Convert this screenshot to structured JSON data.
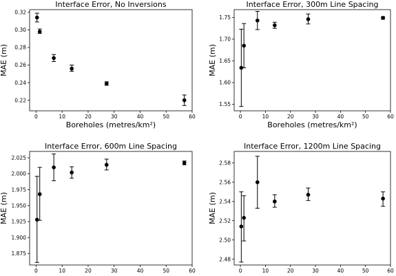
{
  "chart_data": [
    {
      "type": "scatter",
      "title": "Interface Error, No Inversions",
      "xlabel": "Boreholes (metres/km²)",
      "ylabel": "MAE (m)",
      "xlim": [
        -2.5,
        60
      ],
      "ylim": [
        0.208,
        0.323
      ],
      "xticks": [
        0,
        10,
        20,
        30,
        40,
        50,
        60
      ],
      "yticks": [
        0.22,
        0.24,
        0.26,
        0.28,
        0.3,
        0.32
      ],
      "ytick_labels": [
        "0.22",
        "0.24",
        "0.26",
        "0.28",
        "0.30",
        "0.32"
      ],
      "points": [
        {
          "x": 0.35,
          "y": 0.314,
          "lo": 0.309,
          "hi": 0.319
        },
        {
          "x": 1.4,
          "y": 0.298,
          "lo": 0.296,
          "hi": 0.301
        },
        {
          "x": 6.8,
          "y": 0.268,
          "lo": 0.264,
          "hi": 0.272
        },
        {
          "x": 13.7,
          "y": 0.256,
          "lo": 0.253,
          "hi": 0.26
        },
        {
          "x": 27.1,
          "y": 0.239,
          "lo": 0.237,
          "hi": 0.241
        },
        {
          "x": 57.0,
          "y": 0.22,
          "lo": 0.214,
          "hi": 0.226
        }
      ]
    },
    {
      "type": "scatter",
      "title": "Interface Error, 300m Line Spacing",
      "xlabel": "Boreholes (metres/km²)",
      "ylabel": "MAE (m)",
      "xlim": [
        -2.5,
        60
      ],
      "ylim": [
        1.535,
        1.768
      ],
      "xticks": [
        0,
        10,
        20,
        30,
        40,
        50,
        60
      ],
      "yticks": [
        1.55,
        1.6,
        1.65,
        1.7,
        1.75
      ],
      "ytick_labels": [
        "1.55",
        "1.60",
        "1.65",
        "1.70",
        "1.75"
      ],
      "points": [
        {
          "x": 0.35,
          "y": 1.634,
          "lo": 1.545,
          "hi": 1.723
        },
        {
          "x": 1.4,
          "y": 1.685,
          "lo": 1.634,
          "hi": 1.736
        },
        {
          "x": 6.8,
          "y": 1.743,
          "lo": 1.722,
          "hi": 1.764
        },
        {
          "x": 13.7,
          "y": 1.732,
          "lo": 1.725,
          "hi": 1.739
        },
        {
          "x": 27.1,
          "y": 1.746,
          "lo": 1.735,
          "hi": 1.758
        },
        {
          "x": 57.0,
          "y": 1.749,
          "lo": 1.746,
          "hi": 1.752
        }
      ]
    },
    {
      "type": "scatter",
      "title": "Interface Error, 600m Line Spacing",
      "xlabel": "Boreholes (metres/km²)",
      "ylabel": "MAE (m)",
      "xlim": [
        -2.5,
        60
      ],
      "ylim": [
        1.857,
        2.035
      ],
      "xticks": [
        0,
        10,
        20,
        30,
        40,
        50,
        60
      ],
      "yticks": [
        1.875,
        1.9,
        1.925,
        1.95,
        1.975,
        2.0,
        2.025
      ],
      "ytick_labels": [
        "1.875",
        "1.900",
        "1.925",
        "1.950",
        "1.975",
        "2.000",
        "2.025"
      ],
      "points": [
        {
          "x": 0.35,
          "y": 1.928,
          "lo": 1.861,
          "hi": 1.996
        },
        {
          "x": 1.4,
          "y": 1.968,
          "lo": 1.927,
          "hi": 2.01
        },
        {
          "x": 6.8,
          "y": 2.01,
          "lo": 1.989,
          "hi": 2.031
        },
        {
          "x": 13.7,
          "y": 2.002,
          "lo": 1.993,
          "hi": 2.011
        },
        {
          "x": 27.1,
          "y": 2.014,
          "lo": 2.006,
          "hi": 2.023
        },
        {
          "x": 57.0,
          "y": 2.017,
          "lo": 2.014,
          "hi": 2.02
        }
      ]
    },
    {
      "type": "scatter",
      "title": "Interface Error, 1200m Line Spacing",
      "xlabel": "Boreholes (metres/km²)",
      "ylabel": "MAE (m)",
      "xlim": [
        -2.5,
        60
      ],
      "ylim": [
        2.474,
        2.592
      ],
      "xticks": [
        0,
        10,
        20,
        30,
        40,
        50,
        60
      ],
      "yticks": [
        2.48,
        2.5,
        2.52,
        2.54,
        2.56,
        2.58
      ],
      "ytick_labels": [
        "2.48",
        "2.50",
        "2.52",
        "2.54",
        "2.56",
        "2.58"
      ],
      "points": [
        {
          "x": 0.35,
          "y": 2.514,
          "lo": 2.477,
          "hi": 2.55
        },
        {
          "x": 1.4,
          "y": 2.523,
          "lo": 2.499,
          "hi": 2.546
        },
        {
          "x": 6.8,
          "y": 2.56,
          "lo": 2.533,
          "hi": 2.587
        },
        {
          "x": 13.7,
          "y": 2.54,
          "lo": 2.534,
          "hi": 2.547
        },
        {
          "x": 27.1,
          "y": 2.547,
          "lo": 2.541,
          "hi": 2.554
        },
        {
          "x": 57.0,
          "y": 2.543,
          "lo": 2.535,
          "hi": 2.55
        }
      ]
    }
  ]
}
